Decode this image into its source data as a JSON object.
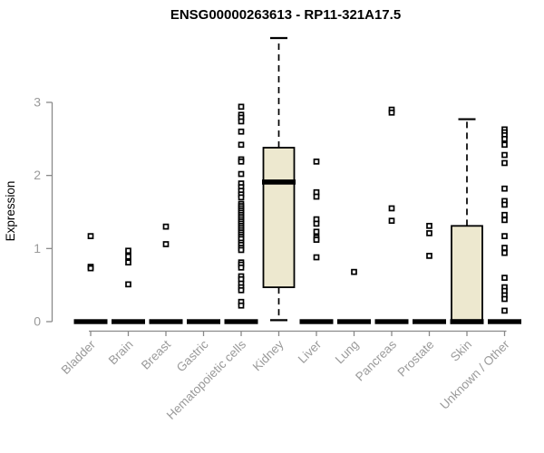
{
  "page": {
    "background": "#ffffff"
  },
  "chart_data": {
    "type": "boxplot",
    "title": "ENSG00000263613 - RP11-321A17.5",
    "ylabel": "Expression",
    "xlabel": "",
    "ylim": [
      0,
      3
    ],
    "yticks": [
      0,
      1,
      2,
      3
    ],
    "grid": false,
    "legend": "none",
    "box_fill": "#EDE8CF",
    "box_border": "#000000",
    "point_color": "#000000",
    "axis_color": "#8A8A8A",
    "label_color": "#9A9A9A",
    "categories": [
      "Bladder",
      "Brain",
      "Breast",
      "Gastric",
      "Hematopoietic cells",
      "Kidney",
      "Liver",
      "Lung",
      "Pancreas",
      "Prostate",
      "Skin",
      "Unknown / Other"
    ],
    "boxes": [
      {
        "category": "Bladder",
        "median": 0,
        "q1": 0,
        "q3": 0,
        "whisker_low": 0,
        "whisker_high": 0,
        "outliers": [
          1.17,
          0.75,
          0.73
        ]
      },
      {
        "category": "Brain",
        "median": 0,
        "q1": 0,
        "q3": 0,
        "whisker_low": 0,
        "whisker_high": 0,
        "outliers": [
          0.97,
          0.89,
          0.81,
          0.51
        ]
      },
      {
        "category": "Breast",
        "median": 0,
        "q1": 0,
        "q3": 0,
        "whisker_low": 0,
        "whisker_high": 0,
        "outliers": [
          1.3,
          1.06
        ]
      },
      {
        "category": "Gastric",
        "median": 0,
        "q1": 0,
        "q3": 0,
        "whisker_low": 0,
        "whisker_high": 0,
        "outliers": []
      },
      {
        "category": "Hematopoietic cells",
        "median": 0,
        "q1": 0,
        "q3": 0,
        "whisker_low": 0,
        "whisker_high": 0,
        "outliers": [
          2.94,
          2.83,
          2.79,
          2.74,
          2.6,
          2.42,
          2.22,
          2.19,
          2.02,
          1.89,
          1.84,
          1.79,
          1.74,
          1.7,
          1.61,
          1.58,
          1.55,
          1.52,
          1.49,
          1.46,
          1.43,
          1.4,
          1.37,
          1.34,
          1.31,
          1.28,
          1.25,
          1.22,
          1.19,
          1.16,
          1.13,
          1.08,
          1.05,
          1.01,
          0.98,
          0.81,
          0.78,
          0.74,
          0.62,
          0.58,
          0.52,
          0.47,
          0.43,
          0.27,
          0.22
        ]
      },
      {
        "category": "Kidney",
        "median": 1.91,
        "q1": 0.47,
        "q3": 2.38,
        "whisker_low": 0.02,
        "whisker_high": 3.88,
        "outliers": []
      },
      {
        "category": "Liver",
        "median": 0,
        "q1": 0,
        "q3": 0,
        "whisker_low": 0,
        "whisker_high": 0,
        "outliers": [
          2.19,
          1.77,
          1.71,
          1.4,
          1.34,
          1.23,
          1.15,
          1.12,
          0.88
        ]
      },
      {
        "category": "Lung",
        "median": 0,
        "q1": 0,
        "q3": 0,
        "whisker_low": 0,
        "whisker_high": 0,
        "outliers": [
          0.68
        ]
      },
      {
        "category": "Pancreas",
        "median": 0,
        "q1": 0,
        "q3": 0,
        "whisker_low": 0,
        "whisker_high": 0,
        "outliers": [
          2.9,
          2.86,
          1.55,
          1.38
        ]
      },
      {
        "category": "Prostate",
        "median": 0,
        "q1": 0,
        "q3": 0,
        "whisker_low": 0,
        "whisker_high": 0,
        "outliers": [
          1.31,
          1.21,
          0.9
        ]
      },
      {
        "category": "Skin",
        "median": 0,
        "q1": 0,
        "q3": 1.31,
        "whisker_low": 0,
        "whisker_high": 2.77,
        "outliers": []
      },
      {
        "category": "Unknown / Other",
        "median": 0,
        "q1": 0,
        "q3": 0,
        "whisker_low": 0,
        "whisker_high": 0,
        "outliers": [
          2.63,
          2.59,
          2.55,
          2.5,
          2.42,
          2.28,
          2.17,
          1.82,
          1.65,
          1.6,
          1.46,
          1.39,
          1.17,
          1.01,
          0.94,
          0.6,
          0.47,
          0.42,
          0.36,
          0.31,
          0.15
        ]
      }
    ]
  }
}
